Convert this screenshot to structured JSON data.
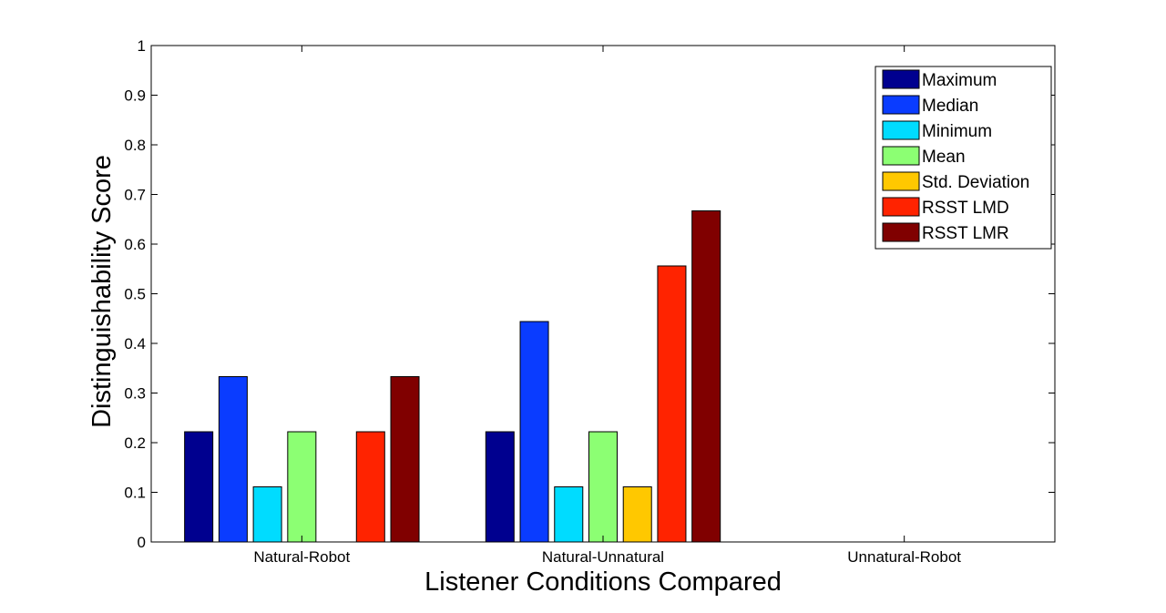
{
  "chart_data": {
    "type": "bar",
    "xlabel": "Listener Conditions Compared",
    "ylabel": "Distinguishability Score",
    "ylim": [
      0,
      1
    ],
    "yticks": [
      "0",
      "0.1",
      "0.2",
      "0.3",
      "0.4",
      "0.5",
      "0.6",
      "0.7",
      "0.8",
      "0.9",
      "1"
    ],
    "categories": [
      "Natural-Robot",
      "Natural-Unnatural",
      "Unnatural-Robot"
    ],
    "grid": false,
    "legend_position": "top-right",
    "series": [
      {
        "name": "Maximum",
        "color": "#00008f",
        "values": [
          0.222,
          0.222,
          0
        ]
      },
      {
        "name": "Median",
        "color": "#0a3cff",
        "values": [
          0.333,
          0.444,
          0
        ]
      },
      {
        "name": "Minimum",
        "color": "#00dcff",
        "values": [
          0.111,
          0.111,
          0
        ]
      },
      {
        "name": "Mean",
        "color": "#8cff73",
        "values": [
          0.222,
          0.222,
          0
        ]
      },
      {
        "name": "Std. Deviation",
        "color": "#ffc800",
        "values": [
          0,
          0.111,
          0
        ]
      },
      {
        "name": "RSST LMD",
        "color": "#ff2300",
        "values": [
          0.222,
          0.556,
          0
        ]
      },
      {
        "name": "RSST LMR",
        "color": "#800000",
        "values": [
          0.333,
          0.667,
          0
        ]
      }
    ]
  }
}
